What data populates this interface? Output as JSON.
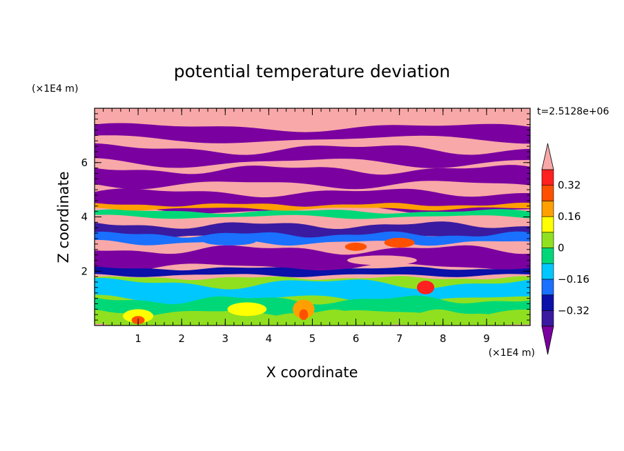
{
  "chart_data": {
    "type": "heatmap",
    "title": "potential temperature deviation",
    "xlabel": "X coordinate",
    "ylabel": "Z coordinate",
    "x_unit": "(×1E4 m)",
    "y_unit": "(×1E4 m)",
    "time_label": "t=2.5128e+06",
    "xlim": [
      0,
      10
    ],
    "ylim": [
      0,
      8
    ],
    "x_ticks": [
      1,
      2,
      3,
      4,
      5,
      6,
      7,
      8,
      9
    ],
    "y_ticks": [
      2,
      4,
      6
    ],
    "x_minor_step": 0.2,
    "y_minor_step": 0.2,
    "colorbar": {
      "levels": [
        -0.4,
        -0.32,
        -0.24,
        -0.16,
        -0.08,
        0,
        0.08,
        0.16,
        0.24,
        0.32,
        0.4
      ],
      "labeled": [
        {
          "value": 0.32,
          "text": "0.32"
        },
        {
          "value": 0.16,
          "text": "0.16"
        },
        {
          "value": 0,
          "text": "0"
        },
        {
          "value": -0.16,
          "text": "−0.16"
        },
        {
          "value": -0.32,
          "text": "−0.32"
        }
      ],
      "colors": [
        "#7a00a0",
        "#3a1aa0",
        "#0a10a8",
        "#1a70ff",
        "#00c8ff",
        "#00d878",
        "#90e020",
        "#ffff00",
        "#ffa000",
        "#ff5000",
        "#ff2020",
        "#f8a8a8"
      ],
      "extend": "both"
    }
  }
}
